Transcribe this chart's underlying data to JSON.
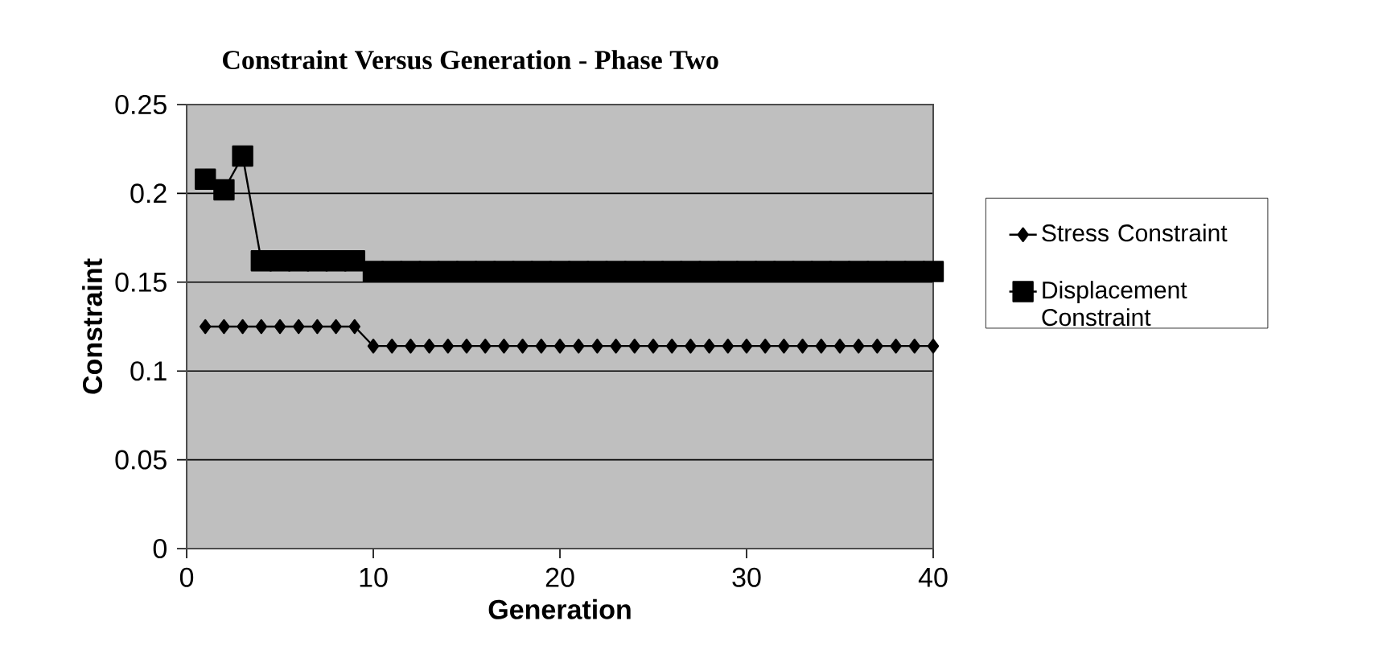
{
  "chart_data": {
    "type": "line",
    "title": "Constraint Versus Generation - Phase Two",
    "xlabel": "Generation",
    "ylabel": "Constraint",
    "x": [
      1,
      2,
      3,
      4,
      5,
      6,
      7,
      8,
      9,
      10,
      11,
      12,
      13,
      14,
      15,
      16,
      17,
      18,
      19,
      20,
      21,
      22,
      23,
      24,
      25,
      26,
      27,
      28,
      29,
      30,
      31,
      32,
      33,
      34,
      35,
      36,
      37,
      38,
      39,
      40
    ],
    "series": [
      {
        "name": "Stress Constraint",
        "color": "#000000",
        "marker": "diamond",
        "values": [
          0.125,
          0.125,
          0.125,
          0.125,
          0.125,
          0.125,
          0.125,
          0.125,
          0.125,
          0.114,
          0.114,
          0.114,
          0.114,
          0.114,
          0.114,
          0.114,
          0.114,
          0.114,
          0.114,
          0.114,
          0.114,
          0.114,
          0.114,
          0.114,
          0.114,
          0.114,
          0.114,
          0.114,
          0.114,
          0.114,
          0.114,
          0.114,
          0.114,
          0.114,
          0.114,
          0.114,
          0.114,
          0.114,
          0.114,
          0.114
        ]
      },
      {
        "name": "Displacement Constraint",
        "color": "#000000",
        "marker": "square",
        "values": [
          0.208,
          0.202,
          0.221,
          0.162,
          0.162,
          0.162,
          0.162,
          0.162,
          0.162,
          0.156,
          0.156,
          0.156,
          0.156,
          0.156,
          0.156,
          0.156,
          0.156,
          0.156,
          0.156,
          0.156,
          0.156,
          0.156,
          0.156,
          0.156,
          0.156,
          0.156,
          0.156,
          0.156,
          0.156,
          0.156,
          0.156,
          0.156,
          0.156,
          0.156,
          0.156,
          0.156,
          0.156,
          0.156,
          0.156,
          0.156
        ]
      }
    ],
    "xlim": [
      0,
      40
    ],
    "xticks": [
      0,
      10,
      20,
      30,
      40
    ],
    "ylim": [
      0,
      0.25
    ],
    "yticks": [
      0,
      0.05,
      0.1,
      0.15,
      0.2,
      0.25
    ],
    "grid": "y",
    "legend": "right",
    "line_style": "solid"
  }
}
